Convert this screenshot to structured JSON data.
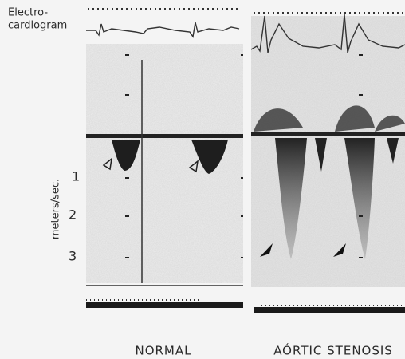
{
  "labels": {
    "ecg": [
      "Electro-",
      "cardiogram"
    ],
    "axis_title": "meters/sec.",
    "scale": [
      1,
      2,
      3
    ],
    "panels": [
      "NORMAL",
      "AÓRTIC STENOSIS"
    ]
  }
}
